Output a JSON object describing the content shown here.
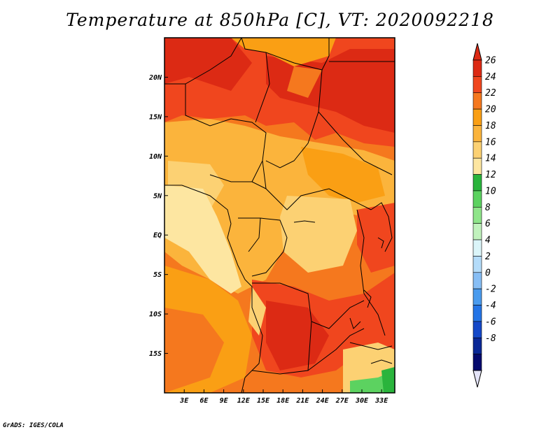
{
  "title": "Temperature at 850hPa [C], VT: 2020092218",
  "credit": "GrADS: IGES/COLA",
  "map": {
    "lat_ticks": [
      "20N",
      "15N",
      "10N",
      "5N",
      "EQ",
      "5S",
      "10S",
      "15S"
    ],
    "lon_ticks": [
      "3E",
      "6E",
      "9E",
      "12E",
      "15E",
      "18E",
      "21E",
      "24E",
      "27E",
      "30E",
      "33E"
    ],
    "lat_values": [
      20,
      15,
      10,
      5,
      0,
      -5,
      -10,
      -15
    ],
    "lon_values": [
      3,
      6,
      9,
      12,
      15,
      18,
      21,
      24,
      27,
      30,
      33
    ],
    "extent": {
      "lon_min": 0,
      "lon_max": 35,
      "lat_min": -20,
      "lat_max": 25
    }
  },
  "colorbar": {
    "labels": [
      "26",
      "24",
      "22",
      "20",
      "18",
      "16",
      "14",
      "12",
      "10",
      "8",
      "6",
      "4",
      "2",
      "0",
      "-2",
      "-4",
      "-6",
      "-8"
    ],
    "colors": [
      "#dc2a14",
      "#f0461e",
      "#f5781e",
      "#fa9f14",
      "#fbb43c",
      "#fcd173",
      "#fde6a1",
      "#2ab43c",
      "#5cd260",
      "#8fe58a",
      "#c1f2bd",
      "#dbf5f9",
      "#b4dcfa",
      "#87bef5",
      "#4a9bee",
      "#2474e6",
      "#1448c8",
      "#0a2896",
      "#050a6e"
    ],
    "under_color": "#e4e4f8"
  }
}
